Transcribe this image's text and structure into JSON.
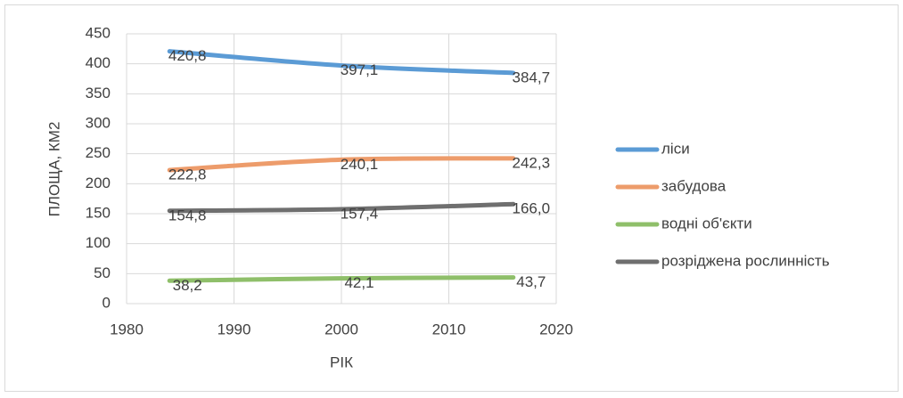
{
  "chart_data": {
    "type": "line",
    "x": [
      1984,
      2000,
      2016
    ],
    "series": [
      {
        "name": "ліси",
        "color": "#5b9bd5",
        "values": [
          420.8,
          397.1,
          384.7
        ],
        "value_labels": [
          "420,8",
          "397,1",
          "384,7"
        ]
      },
      {
        "name": "забудова",
        "color": "#ed9c6b",
        "values": [
          222.8,
          240.1,
          242.3
        ],
        "value_labels": [
          "222,8",
          "240,1",
          "242,3"
        ]
      },
      {
        "name": "водні об'єкти",
        "color": "#8fbf6a",
        "values": [
          38.2,
          42.1,
          43.7
        ],
        "value_labels": [
          "38,2",
          "42,1",
          "43,7"
        ]
      },
      {
        "name": "розріджена рослинність",
        "color": "#6f6f6f",
        "values": [
          154.8,
          157.4,
          166.0
        ],
        "value_labels": [
          "154,8",
          "157,4",
          "166,0"
        ]
      }
    ],
    "xlabel": "РІК",
    "ylabel": "ПЛОЩА, КМ2",
    "xlim": [
      1980,
      2020
    ],
    "xticks": [
      1980,
      1990,
      2000,
      2010,
      2020
    ],
    "ylim": [
      0,
      450
    ],
    "yticks": [
      0,
      50,
      100,
      150,
      200,
      250,
      300,
      350,
      400,
      450
    ],
    "grid": true,
    "legend": "right"
  }
}
